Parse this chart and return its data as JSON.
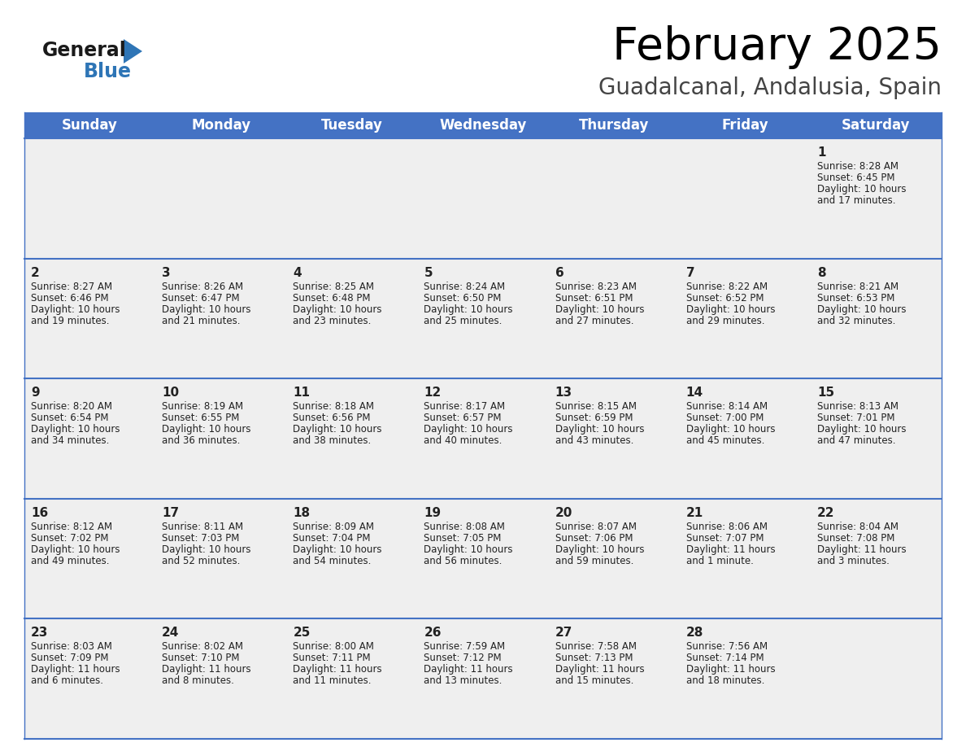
{
  "title": "February 2025",
  "subtitle": "Guadalcanal, Andalusia, Spain",
  "header_bg": "#4472C4",
  "header_text_color": "#FFFFFF",
  "day_names": [
    "Sunday",
    "Monday",
    "Tuesday",
    "Wednesday",
    "Thursday",
    "Friday",
    "Saturday"
  ],
  "title_fontsize": 40,
  "subtitle_fontsize": 20,
  "header_fontsize": 12,
  "day_num_fontsize": 11,
  "cell_text_fontsize": 8.5,
  "cell_bg_light": "#EFEFEF",
  "cell_bg_white": "#FFFFFF",
  "border_color": "#4472C4",
  "text_color": "#222222",
  "logo_general_color": "#1a1a1a",
  "logo_blue_color": "#2E75B6",
  "calendar_data": [
    [
      {
        "day": null,
        "sunrise": null,
        "sunset": null,
        "daylight": null
      },
      {
        "day": null,
        "sunrise": null,
        "sunset": null,
        "daylight": null
      },
      {
        "day": null,
        "sunrise": null,
        "sunset": null,
        "daylight": null
      },
      {
        "day": null,
        "sunrise": null,
        "sunset": null,
        "daylight": null
      },
      {
        "day": null,
        "sunrise": null,
        "sunset": null,
        "daylight": null
      },
      {
        "day": null,
        "sunrise": null,
        "sunset": null,
        "daylight": null
      },
      {
        "day": 1,
        "sunrise": "8:28 AM",
        "sunset": "6:45 PM",
        "daylight": "10 hours\nand 17 minutes."
      }
    ],
    [
      {
        "day": 2,
        "sunrise": "8:27 AM",
        "sunset": "6:46 PM",
        "daylight": "10 hours\nand 19 minutes."
      },
      {
        "day": 3,
        "sunrise": "8:26 AM",
        "sunset": "6:47 PM",
        "daylight": "10 hours\nand 21 minutes."
      },
      {
        "day": 4,
        "sunrise": "8:25 AM",
        "sunset": "6:48 PM",
        "daylight": "10 hours\nand 23 minutes."
      },
      {
        "day": 5,
        "sunrise": "8:24 AM",
        "sunset": "6:50 PM",
        "daylight": "10 hours\nand 25 minutes."
      },
      {
        "day": 6,
        "sunrise": "8:23 AM",
        "sunset": "6:51 PM",
        "daylight": "10 hours\nand 27 minutes."
      },
      {
        "day": 7,
        "sunrise": "8:22 AM",
        "sunset": "6:52 PM",
        "daylight": "10 hours\nand 29 minutes."
      },
      {
        "day": 8,
        "sunrise": "8:21 AM",
        "sunset": "6:53 PM",
        "daylight": "10 hours\nand 32 minutes."
      }
    ],
    [
      {
        "day": 9,
        "sunrise": "8:20 AM",
        "sunset": "6:54 PM",
        "daylight": "10 hours\nand 34 minutes."
      },
      {
        "day": 10,
        "sunrise": "8:19 AM",
        "sunset": "6:55 PM",
        "daylight": "10 hours\nand 36 minutes."
      },
      {
        "day": 11,
        "sunrise": "8:18 AM",
        "sunset": "6:56 PM",
        "daylight": "10 hours\nand 38 minutes."
      },
      {
        "day": 12,
        "sunrise": "8:17 AM",
        "sunset": "6:57 PM",
        "daylight": "10 hours\nand 40 minutes."
      },
      {
        "day": 13,
        "sunrise": "8:15 AM",
        "sunset": "6:59 PM",
        "daylight": "10 hours\nand 43 minutes."
      },
      {
        "day": 14,
        "sunrise": "8:14 AM",
        "sunset": "7:00 PM",
        "daylight": "10 hours\nand 45 minutes."
      },
      {
        "day": 15,
        "sunrise": "8:13 AM",
        "sunset": "7:01 PM",
        "daylight": "10 hours\nand 47 minutes."
      }
    ],
    [
      {
        "day": 16,
        "sunrise": "8:12 AM",
        "sunset": "7:02 PM",
        "daylight": "10 hours\nand 49 minutes."
      },
      {
        "day": 17,
        "sunrise": "8:11 AM",
        "sunset": "7:03 PM",
        "daylight": "10 hours\nand 52 minutes."
      },
      {
        "day": 18,
        "sunrise": "8:09 AM",
        "sunset": "7:04 PM",
        "daylight": "10 hours\nand 54 minutes."
      },
      {
        "day": 19,
        "sunrise": "8:08 AM",
        "sunset": "7:05 PM",
        "daylight": "10 hours\nand 56 minutes."
      },
      {
        "day": 20,
        "sunrise": "8:07 AM",
        "sunset": "7:06 PM",
        "daylight": "10 hours\nand 59 minutes."
      },
      {
        "day": 21,
        "sunrise": "8:06 AM",
        "sunset": "7:07 PM",
        "daylight": "11 hours\nand 1 minute."
      },
      {
        "day": 22,
        "sunrise": "8:04 AM",
        "sunset": "7:08 PM",
        "daylight": "11 hours\nand 3 minutes."
      }
    ],
    [
      {
        "day": 23,
        "sunrise": "8:03 AM",
        "sunset": "7:09 PM",
        "daylight": "11 hours\nand 6 minutes."
      },
      {
        "day": 24,
        "sunrise": "8:02 AM",
        "sunset": "7:10 PM",
        "daylight": "11 hours\nand 8 minutes."
      },
      {
        "day": 25,
        "sunrise": "8:00 AM",
        "sunset": "7:11 PM",
        "daylight": "11 hours\nand 11 minutes."
      },
      {
        "day": 26,
        "sunrise": "7:59 AM",
        "sunset": "7:12 PM",
        "daylight": "11 hours\nand 13 minutes."
      },
      {
        "day": 27,
        "sunrise": "7:58 AM",
        "sunset": "7:13 PM",
        "daylight": "11 hours\nand 15 minutes."
      },
      {
        "day": 28,
        "sunrise": "7:56 AM",
        "sunset": "7:14 PM",
        "daylight": "11 hours\nand 18 minutes."
      },
      {
        "day": null,
        "sunrise": null,
        "sunset": null,
        "daylight": null
      }
    ]
  ]
}
